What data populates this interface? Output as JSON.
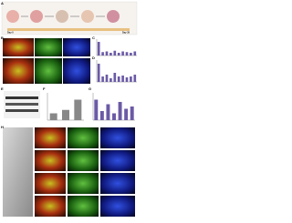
{
  "panels": [
    "A",
    "B",
    "C",
    "D",
    "E",
    "F",
    "G",
    "H"
  ],
  "timeline": {
    "start": "Day 0",
    "end": "Day 35"
  },
  "charts": [
    {
      "color": "#6b5aa6",
      "ylim": [
        0,
        1.2
      ],
      "values": [
        1,
        0.25,
        0.3,
        0.2,
        0.35,
        0.2,
        0.3,
        0.25,
        0.2,
        0.3
      ]
    },
    {
      "color": "#6b5aa6",
      "ylim": [
        0,
        1.2
      ],
      "values": [
        1,
        0.3,
        0.4,
        0.2,
        0.5,
        0.3,
        0.35,
        0.25,
        0.3,
        0.4
      ]
    },
    {
      "color": "#888888",
      "ylim": [
        0,
        4
      ],
      "values": [
        1,
        1.5,
        3
      ]
    },
    {
      "color": "#6b5aa6",
      "ylim": [
        0,
        1.2
      ],
      "values": [
        0.9,
        0.4,
        0.7,
        0.3,
        0.8,
        0.5,
        0.6
      ]
    }
  ]
}
